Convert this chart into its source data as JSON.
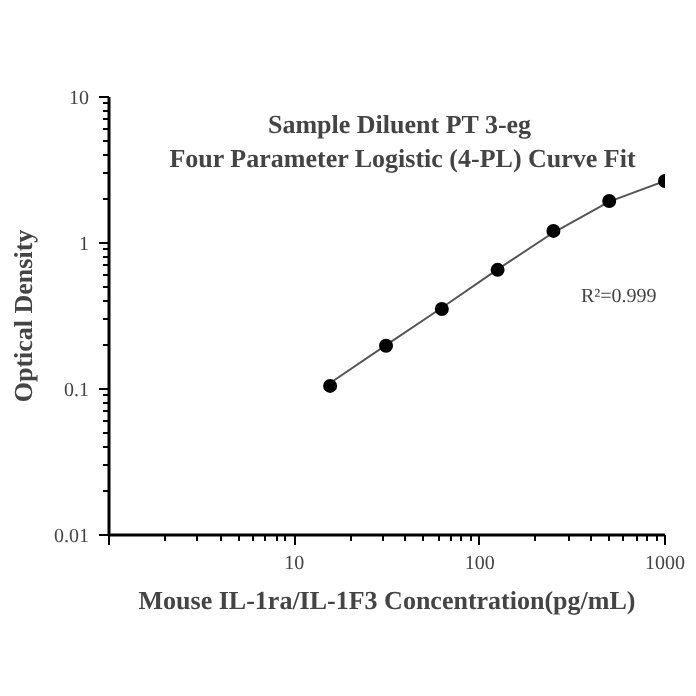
{
  "chart_data": {
    "type": "scatter",
    "title": "Sample Diluent  PT 3-eg\nFour Parameter Logistic (4-PL) Curve Fit",
    "xlabel": "Mouse IL-1ra/IL-1F3 Concentration(pg/mL)",
    "ylabel": "Optical Density",
    "log": "xy",
    "xlim": [
      1,
      1000
    ],
    "ylim": [
      0.01,
      10
    ],
    "xticks": [
      {
        "value": 1,
        "label": null
      },
      10,
      100,
      1000
    ],
    "yticks": [
      0.01,
      0.1,
      1,
      10
    ],
    "grid": false,
    "series": [
      {
        "type": "line",
        "color": "#555555",
        "marker": "none",
        "x": [
          15.6,
          31.25,
          62.5,
          125,
          250,
          500,
          1000
        ],
        "values": [
          0.11,
          0.2,
          0.36,
          0.66,
          1.18,
          1.92,
          2.66
        ]
      },
      {
        "color": "#000000",
        "marker": "circle",
        "x": [
          15.6,
          31.25,
          62.5,
          125,
          250,
          500,
          1000
        ],
        "values": [
          0.105,
          0.198,
          0.353,
          0.655,
          1.21,
          1.94,
          2.66
        ]
      }
    ],
    "annotations": [
      "R²=0.999"
    ]
  }
}
